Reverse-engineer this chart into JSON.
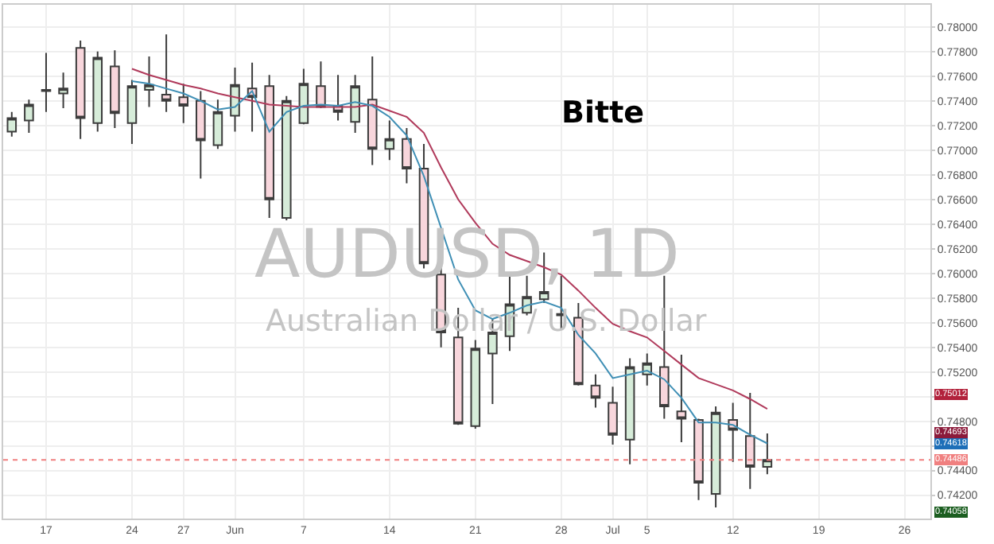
{
  "chart_data": {
    "type": "candlestick",
    "title": "AUDUSD, 1D",
    "subtitle": "Australian Dollar / U.S. Dollar",
    "categories": [
      null,
      null,
      "17",
      null,
      null,
      null,
      null,
      "24",
      null,
      null,
      "27",
      null,
      null,
      "Jun",
      null,
      null,
      null,
      "7",
      null,
      null,
      null,
      null,
      "14",
      null,
      null,
      null,
      null,
      "21",
      null,
      null,
      null,
      null,
      "28",
      null,
      null,
      "Jul",
      null,
      "5",
      null,
      null,
      null,
      null,
      "12",
      null,
      null,
      null,
      null,
      "19",
      null,
      null,
      null,
      null,
      "26",
      null
    ],
    "ohlc": [
      [
        0.7715,
        0.7731,
        0.7711,
        0.7726
      ],
      [
        0.7724,
        0.7741,
        0.7714,
        0.7737
      ],
      [
        0.7749,
        0.7779,
        0.7731,
        0.7748
      ],
      [
        0.7746,
        0.7763,
        0.7734,
        0.775
      ],
      [
        0.7783,
        0.7789,
        0.7709,
        0.7726
      ],
      [
        0.7722,
        0.778,
        0.7715,
        0.7775
      ],
      [
        0.7768,
        0.7781,
        0.7718,
        0.773
      ],
      [
        0.7722,
        0.7757,
        0.7705,
        0.7752
      ],
      [
        0.7749,
        0.7776,
        0.7735,
        0.7753
      ],
      [
        0.7745,
        0.7794,
        0.7731,
        0.774
      ],
      [
        0.7743,
        0.7754,
        0.7722,
        0.7736
      ],
      [
        0.774,
        0.7748,
        0.7677,
        0.7708
      ],
      [
        0.7704,
        0.7741,
        0.7701,
        0.7731
      ],
      [
        0.7728,
        0.7767,
        0.7715,
        0.7753
      ],
      [
        0.775,
        0.7771,
        0.7715,
        0.7743
      ],
      [
        0.7752,
        0.7761,
        0.7645,
        0.766
      ],
      [
        0.7645,
        0.7744,
        0.7643,
        0.774
      ],
      [
        0.7722,
        0.7766,
        0.7721,
        0.7754
      ],
      [
        0.7752,
        0.7772,
        0.7734,
        0.7735
      ],
      [
        0.7736,
        0.7761,
        0.7724,
        0.7731
      ],
      [
        0.7723,
        0.7761,
        0.7714,
        0.7752
      ],
      [
        0.7741,
        0.7776,
        0.7688,
        0.7701
      ],
      [
        0.7701,
        0.7724,
        0.7692,
        0.7709
      ],
      [
        0.7709,
        0.7718,
        0.7673,
        0.7685
      ],
      [
        0.7685,
        0.7705,
        0.7604,
        0.7608
      ],
      [
        0.7599,
        0.7608,
        0.754,
        0.7552
      ],
      [
        0.7548,
        0.7572,
        0.7477,
        0.7478
      ],
      [
        0.7476,
        0.7546,
        0.7474,
        0.7539
      ],
      [
        0.7535,
        0.7563,
        0.7494,
        0.7552
      ],
      [
        0.7549,
        0.7598,
        0.7537,
        0.7575
      ],
      [
        0.7568,
        0.7598,
        0.7566,
        0.7581
      ],
      [
        0.7579,
        0.7617,
        0.7576,
        0.7585
      ],
      [
        0.7567,
        0.7598,
        0.7554,
        0.7566
      ],
      [
        0.7564,
        0.7576,
        0.7509,
        0.751
      ],
      [
        0.7509,
        0.7518,
        0.7491,
        0.7499
      ],
      [
        0.7495,
        0.7508,
        0.7461,
        0.7469
      ],
      [
        0.7465,
        0.7531,
        0.7445,
        0.7524
      ],
      [
        0.7518,
        0.7535,
        0.7509,
        0.7527
      ],
      [
        0.7524,
        0.7598,
        0.7482,
        0.7492
      ],
      [
        0.7488,
        0.7534,
        0.7463,
        0.7482
      ],
      [
        0.7481,
        0.7482,
        0.7416,
        0.743
      ],
      [
        0.7421,
        0.7492,
        0.741,
        0.7487
      ],
      [
        0.7481,
        0.7495,
        0.7447,
        0.7473
      ],
      [
        0.7468,
        0.7503,
        0.7425,
        0.7443
      ],
      [
        0.7443,
        0.747,
        0.7437,
        0.74486
      ],
      null,
      null,
      null,
      null,
      null,
      null,
      null,
      null,
      null
    ],
    "series": [
      {
        "type": "line",
        "color": "#b03a5b",
        "values": [
          null,
          null,
          null,
          null,
          null,
          null,
          null,
          0.7766,
          0.7761,
          0.7757,
          0.7753,
          0.775,
          0.7746,
          0.7743,
          0.774,
          0.7737,
          0.7736,
          0.7735,
          0.7735,
          0.7735,
          0.7735,
          0.7737,
          0.7732,
          0.7727,
          0.7714,
          0.7686,
          0.766,
          0.7641,
          0.7624,
          0.7615,
          0.761,
          0.7605,
          0.7599,
          0.7586,
          0.7572,
          0.7559,
          0.7553,
          0.7548,
          0.7537,
          0.7526,
          0.7515,
          0.751,
          0.7505,
          0.7498,
          0.749,
          null,
          null,
          null,
          null,
          null,
          null,
          null,
          null,
          null
        ]
      },
      {
        "type": "line",
        "color": "#3f8fb5",
        "values": [
          null,
          null,
          null,
          null,
          null,
          null,
          null,
          0.7756,
          0.7754,
          0.775,
          0.7746,
          0.774,
          0.7733,
          0.7735,
          0.7748,
          0.7715,
          0.7731,
          0.7736,
          0.7737,
          0.7736,
          0.7739,
          0.7736,
          0.7727,
          0.7712,
          0.7679,
          0.7637,
          0.7595,
          0.757,
          0.7563,
          0.7568,
          0.7574,
          0.7577,
          0.7572,
          0.755,
          0.7535,
          0.7515,
          0.7518,
          0.7521,
          0.7514,
          0.7499,
          0.7479,
          0.7479,
          0.7477,
          0.7469,
          0.7462,
          null,
          null,
          null,
          null,
          null,
          null,
          null,
          null,
          null
        ]
      }
    ],
    "ylim": [
      0.7401,
      0.7818
    ],
    "yticks": [
      {
        "value": 0.742,
        "label": "0.74200"
      },
      {
        "value": 0.744,
        "label": "0.74400"
      },
      {
        "value": 0.746,
        "label": null
      },
      {
        "value": 0.748,
        "label": "0.74800"
      },
      {
        "value": 0.75,
        "label": null
      },
      {
        "value": 0.752,
        "label": "0.75200"
      },
      {
        "value": 0.754,
        "label": "0.75400"
      },
      {
        "value": 0.756,
        "label": "0.75600"
      },
      {
        "value": 0.758,
        "label": "0.75800"
      },
      {
        "value": 0.76,
        "label": "0.76000"
      },
      {
        "value": 0.762,
        "label": "0.76200"
      },
      {
        "value": 0.764,
        "label": "0.76400"
      },
      {
        "value": 0.766,
        "label": "0.76600"
      },
      {
        "value": 0.768,
        "label": "0.76800"
      },
      {
        "value": 0.77,
        "label": "0.77000"
      },
      {
        "value": 0.772,
        "label": "0.77200"
      },
      {
        "value": 0.774,
        "label": "0.77400"
      },
      {
        "value": 0.776,
        "label": "0.77600"
      },
      {
        "value": 0.778,
        "label": "0.77800"
      },
      {
        "value": 0.78,
        "label": "0.78000"
      }
    ],
    "ref_lines": [
      {
        "axis": "y",
        "value": 0.74486,
        "label": "0.74486",
        "color": "#f08080",
        "line_style": "dotted"
      }
    ],
    "annotations": [
      "Bitte",
      "0.75012",
      "0.74693",
      "0.74618",
      "0.74058"
    ],
    "grid": true
  }
}
